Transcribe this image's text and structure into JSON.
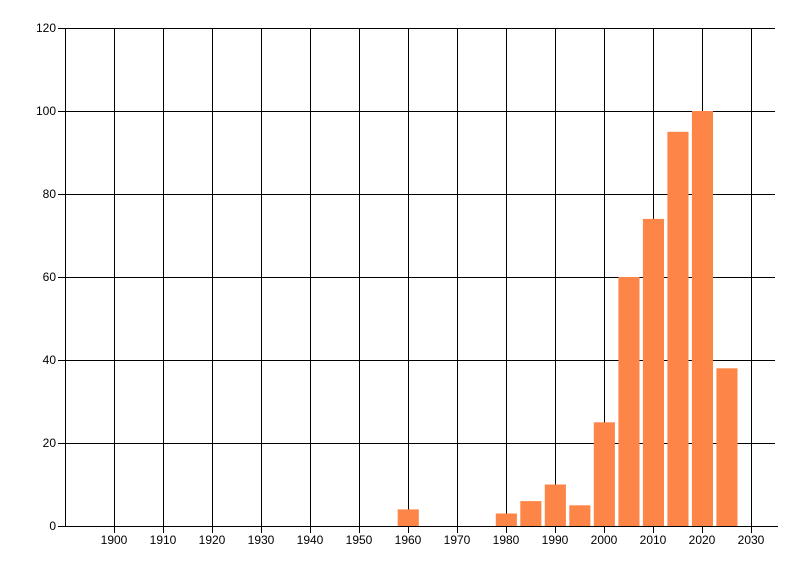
{
  "chart_data": {
    "type": "bar",
    "title": "",
    "xlabel": "",
    "ylabel": "",
    "legend": null,
    "grid": true,
    "background_color": "#ffffff",
    "bar_color": "#fc8547",
    "grid_color": "#000000",
    "axis_color": "#000000",
    "text_color": "#000000",
    "xlim": [
      1890,
      2035
    ],
    "ylim": [
      0,
      120
    ],
    "x_ticks": [
      1900,
      1910,
      1920,
      1930,
      1940,
      1950,
      1960,
      1970,
      1980,
      1990,
      2000,
      2010,
      2020,
      2030
    ],
    "x_tick_labels": [
      "1900",
      "1910",
      "1920",
      "1930",
      "1940",
      "1950",
      "1960",
      "1970",
      "1980",
      "1990",
      "2000",
      "2010",
      "2020",
      "2030"
    ],
    "y_ticks": [
      0,
      20,
      40,
      60,
      80,
      100,
      120
    ],
    "y_tick_labels": [
      "0",
      "20",
      "40",
      "60",
      "80",
      "100",
      "120"
    ],
    "bar_width_years": 4.3,
    "bars": [
      {
        "x": 1960,
        "value": 4
      },
      {
        "x": 1980,
        "value": 3
      },
      {
        "x": 1985,
        "value": 6
      },
      {
        "x": 1990,
        "value": 10
      },
      {
        "x": 1995,
        "value": 5
      },
      {
        "x": 2000,
        "value": 25
      },
      {
        "x": 2005,
        "value": 60
      },
      {
        "x": 2010,
        "value": 74
      },
      {
        "x": 2015,
        "value": 95
      },
      {
        "x": 2020,
        "value": 100
      },
      {
        "x": 2025,
        "value": 38
      }
    ]
  }
}
